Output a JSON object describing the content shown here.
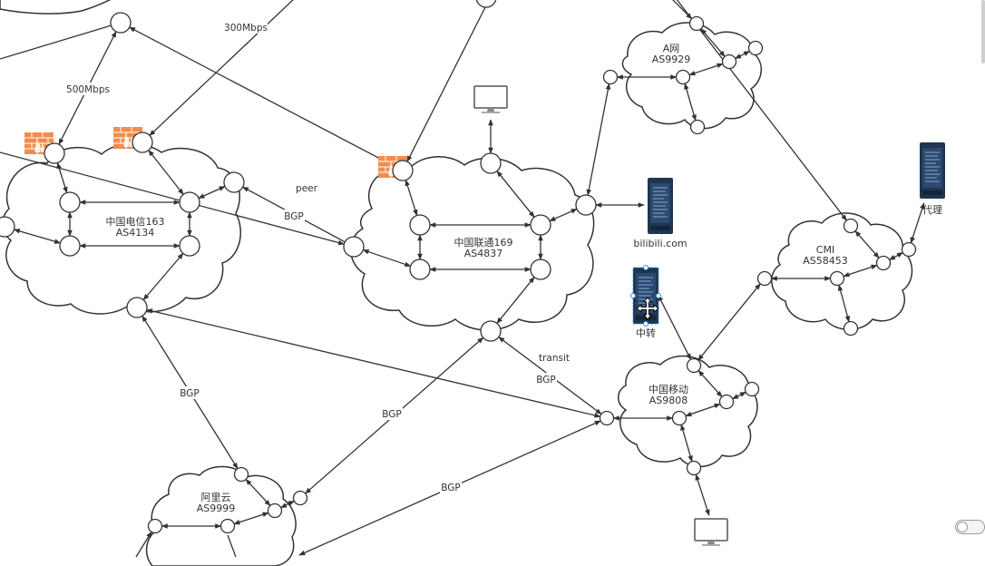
{
  "clouds": {
    "telecom": {
      "name": "中国电信163",
      "asn": "AS4134"
    },
    "unicom": {
      "name": "中国联通169",
      "asn": "AS4837"
    },
    "anet": {
      "name": "A网",
      "asn": "AS9929"
    },
    "cmi": {
      "name": "CMI",
      "asn": "AS58453"
    },
    "mobile": {
      "name": "中国移动",
      "asn": "AS9808"
    },
    "aliyun": {
      "name": "阿里云",
      "asn": "AS9999"
    }
  },
  "devices": {
    "bilibili": {
      "label": "bilibili.com"
    },
    "relay": {
      "label": "中转"
    },
    "proxy": {
      "label": "代理"
    }
  },
  "edge_labels": {
    "mbps300": "300Mbps",
    "mbps500": "500Mbps",
    "peer": "peer",
    "bgp_telecom_unicom": "BGP",
    "bgp_telecom_aliyun": "BGP",
    "bgp_unicom_aliyun": "BGP",
    "transit": "transit",
    "bgp_unicom_mobile": "BGP",
    "bgp_aliyun_mobile": "BGP"
  },
  "colors": {
    "line": "#333333",
    "firewall": "#ef8d4f",
    "server_dark": "#1f3550",
    "server_screen": "#5b86b8",
    "selection": "#3a8ee6"
  },
  "icons": [
    "firewall-icon",
    "server-icon",
    "monitor-icon",
    "move-cursor-icon"
  ],
  "toggle": {
    "state": "off"
  }
}
